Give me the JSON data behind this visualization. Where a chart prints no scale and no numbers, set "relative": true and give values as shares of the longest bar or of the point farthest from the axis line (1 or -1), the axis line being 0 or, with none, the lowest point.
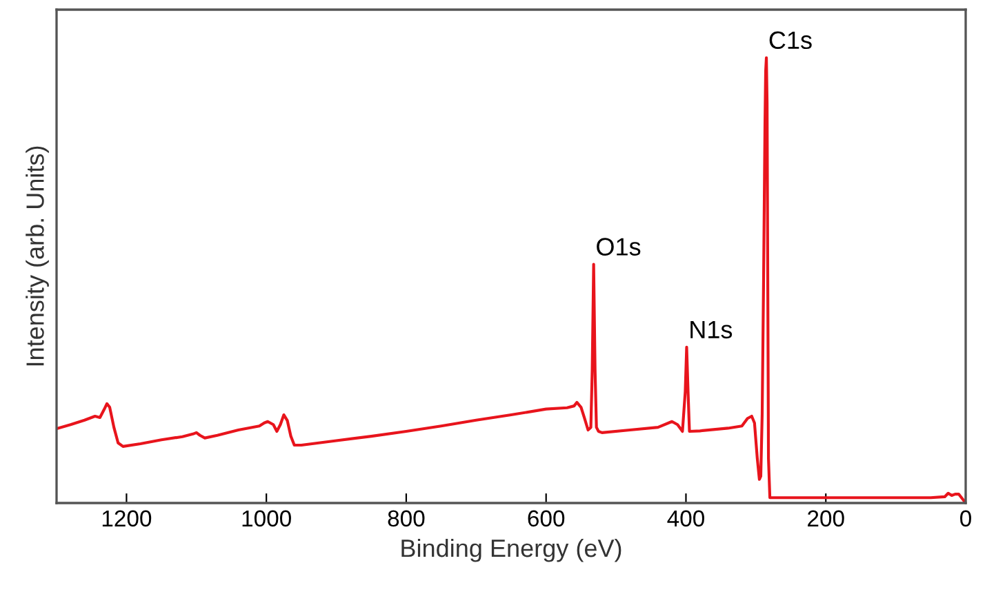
{
  "chart_data": {
    "type": "line",
    "relative": true,
    "xlabel": "Binding Energy (eV)",
    "ylabel": "Intensity (arb. Units)",
    "xlim": [
      1300,
      0
    ],
    "xticks": [
      1200,
      1000,
      800,
      600,
      400,
      200,
      0
    ],
    "grid": false,
    "legend": false,
    "series": [
      {
        "color": "#e8141c",
        "x": [
          1300,
          1280,
          1260,
          1245,
          1238,
          1232,
          1228,
          1224,
          1218,
          1212,
          1205,
          1180,
          1150,
          1120,
          1105,
          1100,
          1095,
          1088,
          1070,
          1040,
          1010,
          1003,
          998,
          990,
          985,
          980,
          975,
          970,
          965,
          960,
          950,
          900,
          850,
          800,
          750,
          700,
          650,
          600,
          570,
          560,
          556,
          550,
          545,
          540,
          536,
          534,
          532,
          530,
          528,
          525,
          520,
          480,
          440,
          420,
          412,
          405,
          401,
          399,
          397,
          395,
          380,
          340,
          320,
          312,
          306,
          302,
          298,
          295,
          293,
          291,
          289,
          287,
          286,
          285,
          284,
          283,
          282,
          280,
          260,
          200,
          150,
          100,
          50,
          30,
          25,
          20,
          15,
          10,
          5,
          0
        ],
        "values": [
          0.167,
          0.176,
          0.186,
          0.195,
          0.192,
          0.21,
          0.223,
          0.215,
          0.17,
          0.135,
          0.127,
          0.133,
          0.142,
          0.149,
          0.155,
          0.158,
          0.152,
          0.146,
          0.152,
          0.164,
          0.173,
          0.18,
          0.183,
          0.176,
          0.161,
          0.176,
          0.198,
          0.185,
          0.15,
          0.13,
          0.13,
          0.14,
          0.15,
          0.161,
          0.173,
          0.186,
          0.198,
          0.211,
          0.214,
          0.218,
          0.226,
          0.215,
          0.19,
          0.164,
          0.17,
          0.3,
          0.536,
          0.3,
          0.17,
          0.161,
          0.158,
          0.164,
          0.17,
          0.183,
          0.176,
          0.161,
          0.25,
          0.35,
          0.25,
          0.161,
          0.162,
          0.168,
          0.173,
          0.19,
          0.195,
          0.18,
          0.1,
          0.053,
          0.06,
          0.2,
          0.5,
          0.85,
          0.97,
          1.0,
          0.9,
          0.5,
          0.1,
          0.012,
          0.012,
          0.012,
          0.012,
          0.012,
          0.012,
          0.014,
          0.022,
          0.017,
          0.02,
          0.02,
          0.01,
          0.0
        ]
      }
    ],
    "annotations": [
      {
        "text": "C1s",
        "x": 285,
        "y": 1.0
      },
      {
        "text": "O1s",
        "x": 532,
        "y": 0.536
      },
      {
        "text": "N1s",
        "x": 399,
        "y": 0.35
      }
    ]
  }
}
